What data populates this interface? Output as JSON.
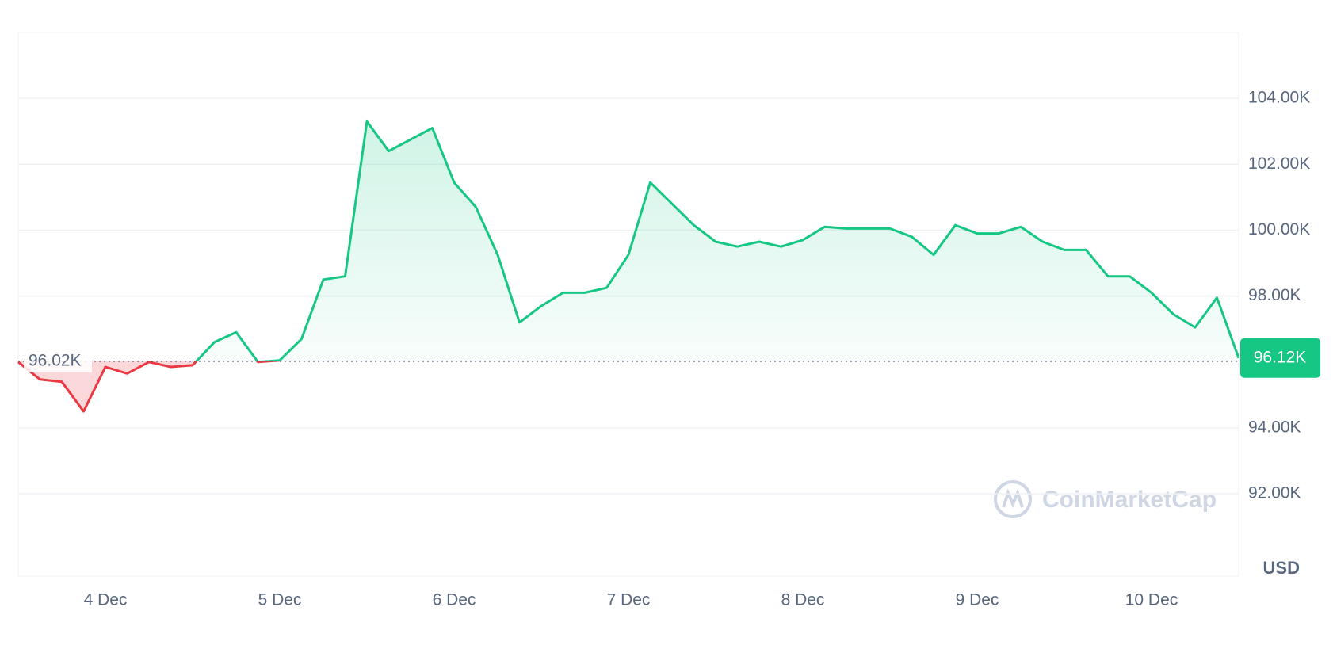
{
  "chart_data": {
    "type": "line",
    "categories": [
      null,
      null,
      null,
      null,
      "4 Dec",
      null,
      null,
      null,
      null,
      null,
      null,
      null,
      "5 Dec",
      null,
      null,
      null,
      null,
      null,
      null,
      null,
      "6 Dec",
      null,
      null,
      null,
      null,
      null,
      null,
      null,
      "7 Dec",
      null,
      null,
      null,
      null,
      null,
      null,
      null,
      "8 Dec",
      null,
      null,
      null,
      null,
      null,
      null,
      null,
      "9 Dec",
      null,
      null,
      null,
      null,
      null,
      null,
      null,
      "10 Dec",
      null,
      null,
      null,
      null
    ],
    "series": [
      {
        "values": [
          96.0,
          95.47,
          95.4,
          94.5,
          95.85,
          95.65,
          96.0,
          95.85,
          95.9,
          96.6,
          96.9,
          96.0,
          96.05,
          96.7,
          98.5,
          98.6,
          103.3,
          102.4,
          102.75,
          103.1,
          101.45,
          100.7,
          99.25,
          97.2,
          97.7,
          98.1,
          98.1,
          98.25,
          99.25,
          101.45,
          100.8,
          100.15,
          99.65,
          99.5,
          99.65,
          99.5,
          99.7,
          100.1,
          100.05,
          100.05,
          100.05,
          99.8,
          99.25,
          100.15,
          99.9,
          99.9,
          100.1,
          99.65,
          99.4,
          99.4,
          98.6,
          98.6,
          98.1,
          97.45,
          97.05,
          97.95,
          96.12
        ]
      }
    ],
    "up_color": "#16c784",
    "down_color": "#ea3943",
    "baseline": {
      "value": 96.02,
      "label": "96.02K"
    },
    "current": {
      "value": 96.12,
      "label": "96.12K"
    },
    "ylim": [
      89.5,
      106
    ],
    "yticks": [
      {
        "value": 92,
        "label": "92.00K"
      },
      {
        "value": 94,
        "label": "94.00K"
      },
      {
        "value": 98,
        "label": "98.00K"
      },
      {
        "value": 100,
        "label": "100.00K"
      },
      {
        "value": 102,
        "label": "102.00K"
      },
      {
        "value": 104,
        "label": "104.00K"
      }
    ],
    "y_unit": "USD",
    "watermark": "CoinMarketCap",
    "grid": true
  }
}
